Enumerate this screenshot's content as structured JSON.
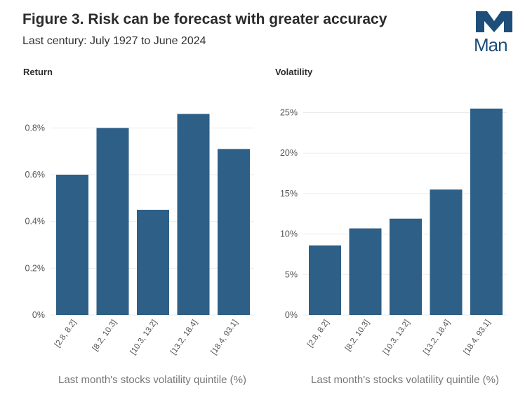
{
  "figure": {
    "title": "Figure 3. Risk can be forecast with greater accuracy",
    "subtitle": "Last century: July 1927 to June 2024"
  },
  "logo": {
    "text": "Man",
    "color": "#1d4e79"
  },
  "colors": {
    "bar": "#2e5f86",
    "grid": "#ebebeb",
    "tick": "#555555"
  },
  "chart_data": [
    {
      "type": "bar",
      "title": "Return",
      "categories": [
        "[2.8, 8.2]",
        "[8.2, 10.3]",
        "[10.3, 13.2]",
        "[13.2, 18.4]",
        "[18.4, 93.1]"
      ],
      "values": [
        0.6,
        0.8,
        0.45,
        0.86,
        0.71
      ],
      "yticks": [
        0,
        0.2,
        0.4,
        0.6,
        0.8
      ],
      "ytick_labels": [
        "0%",
        "0.2%",
        "0.4%",
        "0.6%",
        "0.8%"
      ],
      "ylim": [
        0,
        0.9
      ],
      "xlabel": "Last month's stocks volatility quintile (%)",
      "ylabel": "",
      "grid": true
    },
    {
      "type": "bar",
      "title": "Volatility",
      "categories": [
        "[2.8, 8.2]",
        "[8.2, 10.3]",
        "[10.3, 13.2]",
        "[13.2, 18.4]",
        "[18.4, 93.1]"
      ],
      "values": [
        8.6,
        10.7,
        11.9,
        15.5,
        25.5
      ],
      "yticks": [
        0,
        5,
        10,
        15,
        20,
        25
      ],
      "ytick_labels": [
        "0%",
        "5%",
        "10%",
        "15%",
        "20%",
        "25%"
      ],
      "ylim": [
        0,
        26
      ],
      "xlabel": "Last month's stocks volatility quintile (%)",
      "ylabel": "",
      "grid": true
    }
  ]
}
